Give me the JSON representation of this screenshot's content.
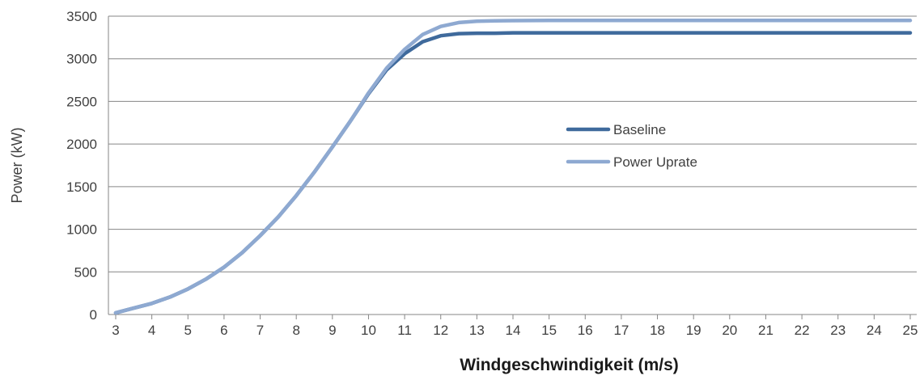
{
  "chart_data": {
    "type": "line",
    "title": "",
    "xlabel": "Windgeschwindigkeit (m/s)",
    "ylabel": "Power (kW)",
    "x": [
      3,
      3.5,
      4,
      4.5,
      5,
      5.5,
      6,
      6.5,
      7,
      7.5,
      8,
      8.5,
      9,
      9.5,
      10,
      10.5,
      11,
      11.5,
      12,
      12.5,
      13,
      13.5,
      14,
      15,
      16,
      17,
      18,
      19,
      20,
      21,
      22,
      23,
      24,
      25
    ],
    "series": [
      {
        "name": "Baseline",
        "color": "#3f6a9c",
        "values": [
          20,
          75,
          130,
          205,
          300,
          415,
          555,
          725,
          925,
          1145,
          1395,
          1670,
          1965,
          2270,
          2590,
          2870,
          3060,
          3200,
          3270,
          3295,
          3300,
          3300,
          3305,
          3305,
          3305,
          3305,
          3305,
          3305,
          3305,
          3305,
          3305,
          3305,
          3305,
          3305
        ]
      },
      {
        "name": "Power Uprate",
        "color": "#8ea9d1",
        "values": [
          20,
          75,
          130,
          205,
          300,
          415,
          555,
          725,
          925,
          1145,
          1395,
          1670,
          1965,
          2270,
          2600,
          2890,
          3110,
          3285,
          3380,
          3425,
          3440,
          3445,
          3448,
          3450,
          3450,
          3450,
          3450,
          3450,
          3450,
          3450,
          3450,
          3450,
          3450,
          3450
        ]
      }
    ],
    "xticks": [
      3,
      4,
      5,
      6,
      7,
      8,
      9,
      10,
      11,
      12,
      13,
      14,
      15,
      16,
      17,
      18,
      19,
      20,
      21,
      22,
      23,
      24,
      25
    ],
    "yticks": [
      0,
      500,
      1000,
      1500,
      2000,
      2500,
      3000,
      3500
    ],
    "xlim": [
      3,
      25
    ],
    "ylim": [
      0,
      3500
    ],
    "grid": "horizontal",
    "legend": "center-right"
  }
}
